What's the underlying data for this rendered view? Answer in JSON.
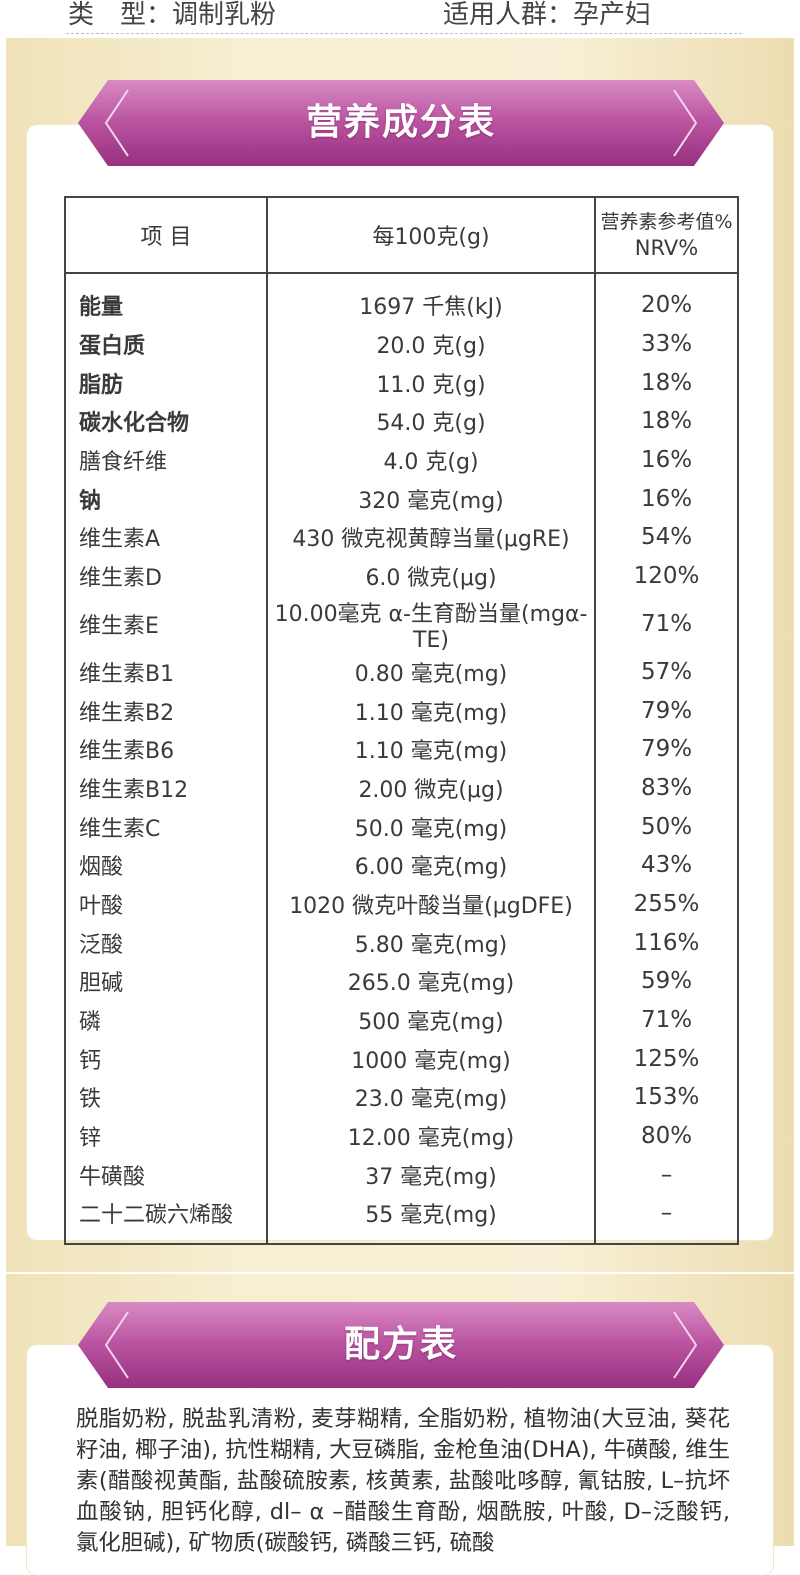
{
  "product_meta": {
    "type_label": "类　型：",
    "type_value": "调制乳粉",
    "audience_label": "适用人群：",
    "audience_value": "孕产妇"
  },
  "nutrition_section": {
    "title": "营养成分表",
    "headers": {
      "item": "项 目",
      "per100": "每100克(g)",
      "nrv_line1": "营养素参考值%",
      "nrv_line2": "NRV%"
    },
    "rows": [
      {
        "name": "能量",
        "amount": "1697 千焦(kJ)",
        "nrv": "20%"
      },
      {
        "name": "蛋白质",
        "amount": "20.0 克(g)",
        "nrv": "33%"
      },
      {
        "name": "脂肪",
        "amount": "11.0 克(g)",
        "nrv": "18%"
      },
      {
        "name": "碳水化合物",
        "amount": "54.0 克(g)",
        "nrv": "18%"
      },
      {
        "name": "膳食纤维",
        "amount": "4.0 克(g)",
        "nrv": "16%"
      },
      {
        "name": "钠",
        "amount": "320 毫克(mg)",
        "nrv": "16%"
      },
      {
        "name": "维生素A",
        "amount": "430 微克视黄醇当量(μgRE)",
        "nrv": "54%"
      },
      {
        "name": "维生素D",
        "amount": "6.0 微克(μg)",
        "nrv": "120%"
      },
      {
        "name": "维生素E",
        "amount": "10.00毫克 α-生育酚当量(mgα-TE)",
        "nrv": "71%"
      },
      {
        "name": "维生素B1",
        "amount": "0.80 毫克(mg)",
        "nrv": "57%"
      },
      {
        "name": "维生素B2",
        "amount": "1.10 毫克(mg)",
        "nrv": "79%"
      },
      {
        "name": "维生素B6",
        "amount": "1.10 毫克(mg)",
        "nrv": "79%"
      },
      {
        "name": "维生素B12",
        "amount": "2.00  微克(μg)",
        "nrv": "83%"
      },
      {
        "name": "维生素C",
        "amount": "50.0 毫克(mg)",
        "nrv": "50%"
      },
      {
        "name": "烟酸",
        "amount": "6.00 毫克(mg)",
        "nrv": "43%"
      },
      {
        "name": "叶酸",
        "amount": "1020 微克叶酸当量(μgDFE)",
        "nrv": "255%"
      },
      {
        "name": "泛酸",
        "amount": "5.80 毫克(mg)",
        "nrv": "116%"
      },
      {
        "name": "胆碱",
        "amount": "265.0 毫克(mg)",
        "nrv": "59%"
      },
      {
        "name": "磷",
        "amount": "500 毫克(mg)",
        "nrv": "71%"
      },
      {
        "name": "钙",
        "amount": "1000 毫克(mg)",
        "nrv": "125%"
      },
      {
        "name": "铁",
        "amount": "23.0 毫克(mg)",
        "nrv": "153%"
      },
      {
        "name": "锌",
        "amount": "12.00 毫克(mg)",
        "nrv": "80%"
      },
      {
        "name": "牛磺酸",
        "amount": "37 毫克(mg)",
        "nrv": "–"
      },
      {
        "name": "二十二碳六烯酸",
        "amount": "55 毫克(mg)",
        "nrv": "–"
      }
    ]
  },
  "formula_section": {
    "title": "配方表",
    "text": "脱脂奶粉, 脱盐乳清粉, 麦芽糊精, 全脂奶粉, 植物油(大豆油, 葵花籽油, 椰子油), 抗性糊精, 大豆磷脂, 金枪鱼油(DHA), 牛磺酸, 维生素(醋酸视黄酯, 盐酸硫胺素, 核黄素, 盐酸吡哆醇, 氰钴胺, L–抗坏血酸钠, 胆钙化醇, dl– α –醋酸生育酚, 烟酰胺, 叶酸, D–泛酸钙, 氯化胆碱), 矿物质(碳酸钙, 磷酸三钙, 硫酸"
  },
  "colors": {
    "ribbon_dark": "#a43a8f",
    "ribbon_light": "#d67ec0",
    "gold_bg": "#f5ebcb",
    "table_border": "#444444"
  }
}
